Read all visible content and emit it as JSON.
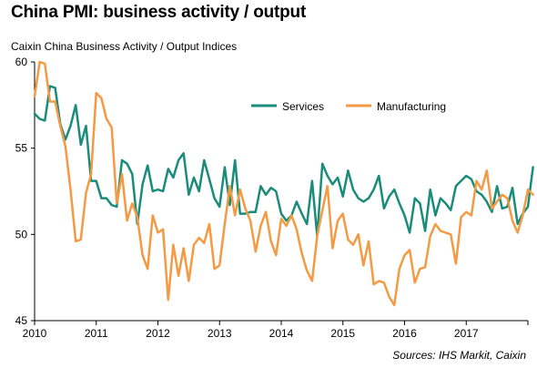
{
  "chart_data": {
    "type": "line",
    "title": "China PMI: business activity / output",
    "subtitle": "Caixin China Business Activity / Output Indices",
    "source": "Sources: IHS Markit, Caixin",
    "ylim": [
      45,
      60
    ],
    "yticks": [
      45,
      50,
      55,
      60
    ],
    "xlim": [
      2010.0,
      2018.0
    ],
    "xticks": [
      2010,
      2011,
      2012,
      2013,
      2014,
      2015,
      2016,
      2017
    ],
    "legend_position": "top-right",
    "grid": false,
    "series": [
      {
        "name": "Services",
        "color": "#1a8c7a",
        "x_start": 2010.0,
        "step": 0.08333,
        "values": [
          57.0,
          56.7,
          56.6,
          58.6,
          58.5,
          56.4,
          55.5,
          56.3,
          57.5,
          55.2,
          56.3,
          53.1,
          53.1,
          52.1,
          52.1,
          51.7,
          51.6,
          54.3,
          54.1,
          53.5,
          50.6,
          52.9,
          54.0,
          52.5,
          52.6,
          52.5,
          53.8,
          53.3,
          54.3,
          54.7,
          52.3,
          53.3,
          52.5,
          54.3,
          53.2,
          52.1,
          51.6,
          53.9,
          51.7,
          54.3,
          51.2,
          51.2,
          51.3,
          51.3,
          52.8,
          52.3,
          52.7,
          52.5,
          51.2,
          50.8,
          51.1,
          51.9,
          51.2,
          50.6,
          53.1,
          49.9,
          54.1,
          53.4,
          52.9,
          53.3,
          52.2,
          53.7,
          52.6,
          52.1,
          51.9,
          52.1,
          52.6,
          53.4,
          51.5,
          52.2,
          52.6,
          51.8,
          51.1,
          50.1,
          52.1,
          51.8,
          50.2,
          52.6,
          51.1,
          52.1,
          51.8,
          51.4,
          52.8,
          53.1,
          53.4,
          53.2,
          52.5,
          52.3,
          51.9,
          51.3,
          52.8,
          51.5,
          51.6,
          52.7,
          50.6,
          51.2,
          51.6,
          53.9
        ]
      },
      {
        "name": "Manufacturing",
        "color": "#f39a43",
        "x_start": 2010.0,
        "step": 0.08333,
        "values": [
          58.0,
          60.0,
          59.9,
          57.7,
          57.7,
          56.3,
          55.1,
          52.6,
          49.6,
          49.7,
          52.4,
          53.5,
          58.2,
          57.9,
          56.7,
          56.2,
          51.8,
          53.5,
          50.8,
          51.8,
          51.0,
          48.8,
          48.0,
          51.1,
          50.1,
          50.3,
          46.2,
          49.4,
          47.6,
          49.2,
          47.3,
          49.4,
          49.8,
          49.5,
          50.6,
          48.0,
          48.2,
          50.6,
          52.8,
          51.1,
          52.6,
          51.5,
          50.8,
          49.0,
          50.5,
          51.3,
          49.6,
          48.8,
          50.9,
          50.5,
          51.1,
          50.3,
          48.9,
          47.9,
          47.3,
          49.9,
          51.4,
          52.8,
          49.2,
          50.8,
          51.2,
          49.7,
          49.4,
          50.0,
          48.2,
          49.6,
          47.1,
          47.3,
          47.2,
          46.4,
          45.9,
          48.0,
          48.8,
          49.1,
          47.2,
          48.0,
          48.1,
          49.9,
          50.6,
          50.2,
          50.1,
          50.0,
          48.3,
          51.0,
          51.3,
          51.1,
          53.1,
          52.6,
          53.7,
          51.5,
          51.9,
          52.3,
          52.1,
          50.8,
          50.1,
          51.1,
          52.6,
          52.3
        ]
      }
    ]
  }
}
